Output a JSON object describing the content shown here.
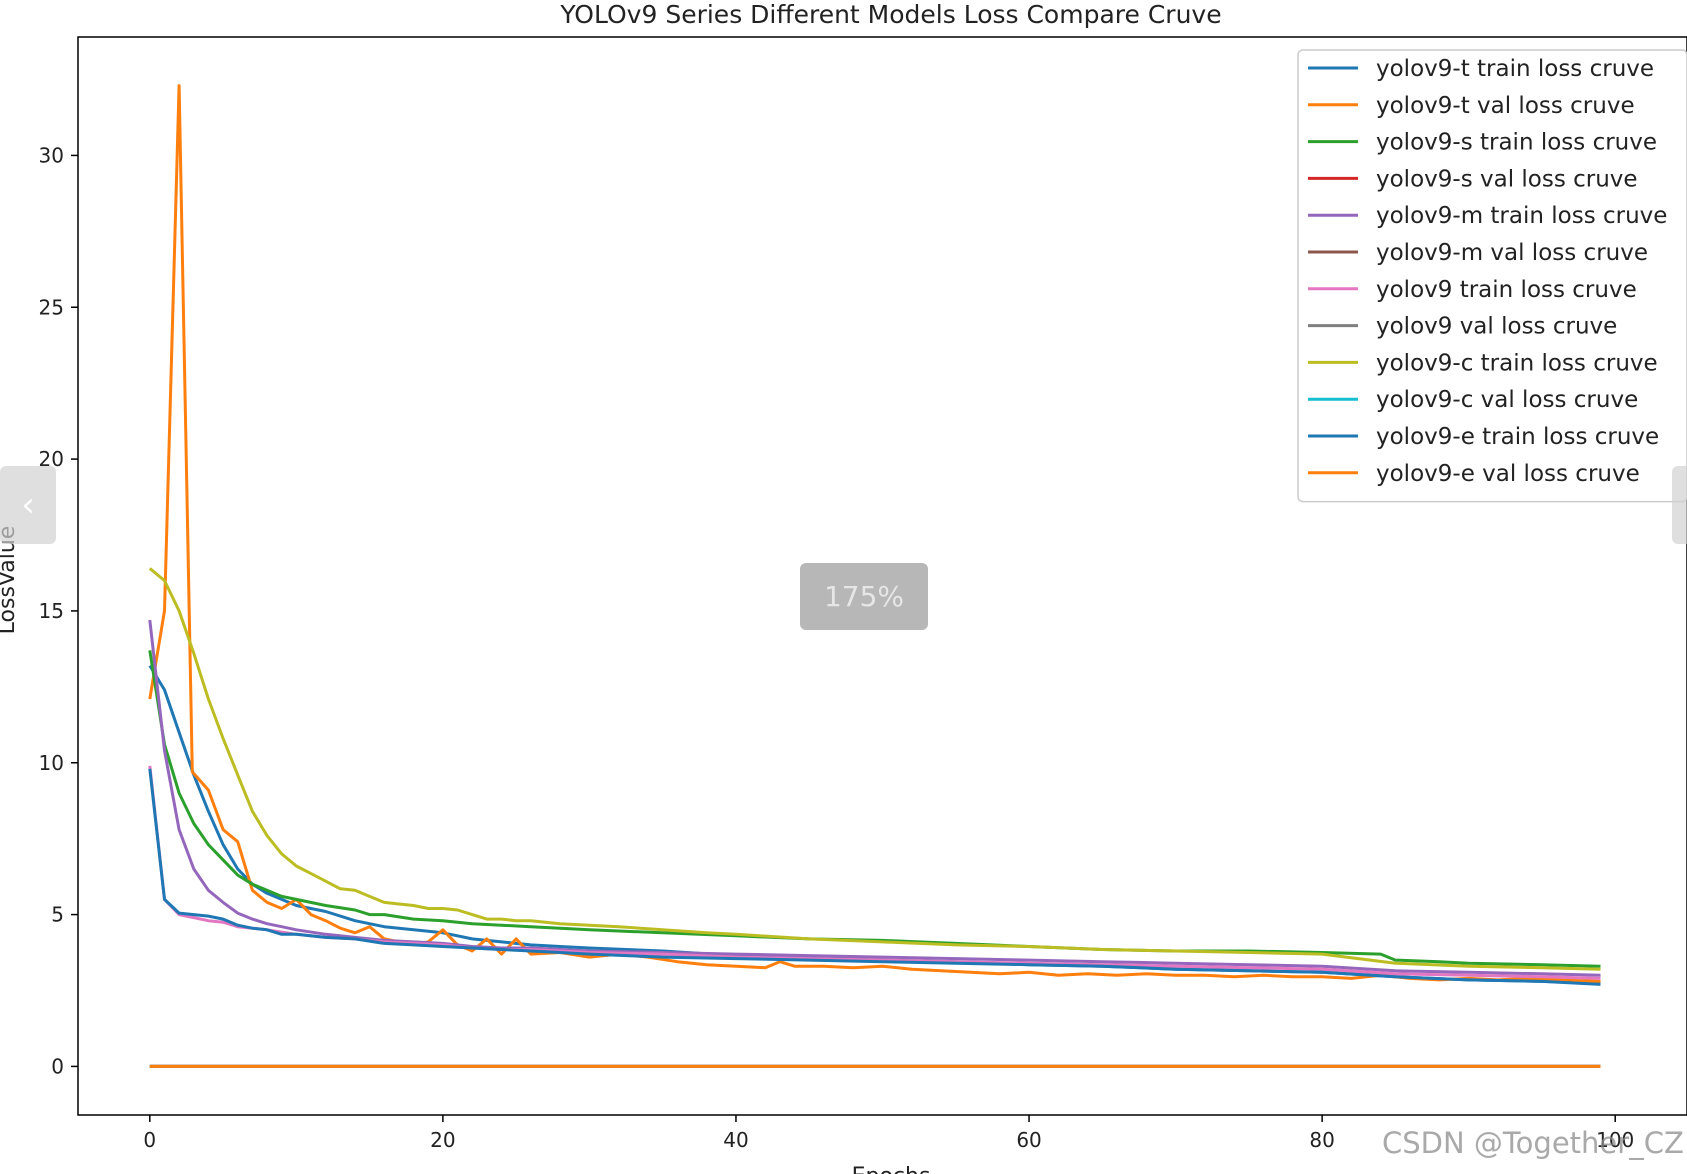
{
  "colors": {
    "c0": "#1f77b4",
    "c1": "#ff7f0e",
    "c2": "#2ca02c",
    "c3": "#d62728",
    "c4": "#9467bd",
    "c5": "#8c564b",
    "c6": "#e377c2",
    "c7": "#7f7f7f",
    "c8": "#bcbd22",
    "c9": "#17becf"
  },
  "ui": {
    "zoom_label": "175%",
    "watermark": "CSDN @Together_CZ",
    "prev_icon": "chevron-left-icon",
    "next_icon": "chevron-right-icon"
  },
  "chart_data": {
    "type": "line",
    "title": "YOLOv9 Series Different Models Loss Compare Cruve",
    "xlabel": "Epochs",
    "ylabel": "LossValue",
    "xlim": [
      -4.9,
      104.9
    ],
    "ylim": [
      -1.6,
      33.9
    ],
    "xticks": [
      0,
      20,
      40,
      60,
      80,
      100
    ],
    "yticks": [
      0,
      5,
      10,
      15,
      20,
      25,
      30
    ],
    "grid": false,
    "legend_position": "top-right",
    "x_range": [
      0,
      99
    ],
    "series": [
      {
        "name": "yolov9-t train loss cruve",
        "color": "#1f77b4",
        "points": [
          [
            0,
            13.2
          ],
          [
            1,
            12.4
          ],
          [
            2,
            11.0
          ],
          [
            3,
            9.6
          ],
          [
            4,
            8.4
          ],
          [
            5,
            7.3
          ],
          [
            6,
            6.5
          ],
          [
            7,
            6.0
          ],
          [
            8,
            5.7
          ],
          [
            9,
            5.5
          ],
          [
            10,
            5.3
          ],
          [
            12,
            5.1
          ],
          [
            14,
            4.8
          ],
          [
            16,
            4.6
          ],
          [
            18,
            4.5
          ],
          [
            20,
            4.4
          ],
          [
            22,
            4.2
          ],
          [
            24,
            4.1
          ],
          [
            26,
            4.0
          ],
          [
            28,
            3.95
          ],
          [
            30,
            3.9
          ],
          [
            35,
            3.8
          ],
          [
            40,
            3.65
          ],
          [
            45,
            3.6
          ],
          [
            50,
            3.5
          ],
          [
            55,
            3.45
          ],
          [
            60,
            3.35
          ],
          [
            65,
            3.3
          ],
          [
            70,
            3.2
          ],
          [
            75,
            3.15
          ],
          [
            80,
            3.1
          ],
          [
            85,
            2.95
          ],
          [
            90,
            2.85
          ],
          [
            95,
            2.8
          ],
          [
            99,
            2.75
          ]
        ]
      },
      {
        "name": "yolov9-t val loss cruve",
        "color": "#ff7f0e",
        "points": [
          [
            0,
            12.1
          ],
          [
            1,
            15.0
          ],
          [
            2,
            32.3
          ],
          [
            2.9,
            9.7
          ],
          [
            4,
            9.1
          ],
          [
            5,
            7.8
          ],
          [
            6,
            7.4
          ],
          [
            7,
            5.8
          ],
          [
            8,
            5.4
          ],
          [
            9,
            5.2
          ],
          [
            10,
            5.5
          ],
          [
            11,
            5.0
          ],
          [
            12,
            4.8
          ],
          [
            13,
            4.55
          ],
          [
            14,
            4.4
          ],
          [
            15,
            4.6
          ],
          [
            16,
            4.2
          ],
          [
            17,
            4.1
          ],
          [
            18,
            4.0
          ],
          [
            19,
            4.1
          ],
          [
            20,
            4.5
          ],
          [
            21,
            4.0
          ],
          [
            22,
            3.8
          ],
          [
            23,
            4.2
          ],
          [
            24,
            3.7
          ],
          [
            25,
            4.2
          ],
          [
            26,
            3.7
          ],
          [
            28,
            3.75
          ],
          [
            30,
            3.6
          ],
          [
            32,
            3.7
          ],
          [
            34,
            3.6
          ],
          [
            36,
            3.45
          ],
          [
            38,
            3.35
          ],
          [
            40,
            3.3
          ],
          [
            42,
            3.25
          ],
          [
            43,
            3.45
          ],
          [
            44,
            3.3
          ],
          [
            46,
            3.3
          ],
          [
            48,
            3.25
          ],
          [
            50,
            3.3
          ],
          [
            52,
            3.2
          ],
          [
            54,
            3.15
          ],
          [
            56,
            3.1
          ],
          [
            58,
            3.05
          ],
          [
            60,
            3.1
          ],
          [
            62,
            3.0
          ],
          [
            64,
            3.05
          ],
          [
            66,
            3.0
          ],
          [
            68,
            3.05
          ],
          [
            70,
            3.0
          ],
          [
            72,
            3.0
          ],
          [
            74,
            2.95
          ],
          [
            76,
            3.0
          ],
          [
            78,
            2.95
          ],
          [
            80,
            2.95
          ],
          [
            82,
            2.9
          ],
          [
            84,
            3.0
          ],
          [
            86,
            2.9
          ],
          [
            88,
            2.85
          ],
          [
            90,
            2.9
          ],
          [
            92,
            2.85
          ],
          [
            94,
            2.9
          ],
          [
            96,
            2.85
          ],
          [
            99,
            2.8
          ]
        ]
      },
      {
        "name": "yolov9-s train loss cruve",
        "color": "#2ca02c",
        "points": [
          [
            0,
            13.7
          ],
          [
            1,
            10.6
          ],
          [
            2,
            9.0
          ],
          [
            3,
            8.0
          ],
          [
            4,
            7.3
          ],
          [
            5,
            6.8
          ],
          [
            6,
            6.3
          ],
          [
            7,
            6.0
          ],
          [
            8,
            5.8
          ],
          [
            9,
            5.6
          ],
          [
            10,
            5.5
          ],
          [
            12,
            5.3
          ],
          [
            14,
            5.15
          ],
          [
            15,
            5.0
          ],
          [
            16,
            5.0
          ],
          [
            18,
            4.85
          ],
          [
            20,
            4.8
          ],
          [
            22,
            4.7
          ],
          [
            24,
            4.65
          ],
          [
            26,
            4.6
          ],
          [
            28,
            4.55
          ],
          [
            30,
            4.5
          ],
          [
            35,
            4.4
          ],
          [
            40,
            4.3
          ],
          [
            45,
            4.2
          ],
          [
            50,
            4.15
          ],
          [
            55,
            4.05
          ],
          [
            60,
            3.95
          ],
          [
            65,
            3.85
          ],
          [
            70,
            3.8
          ],
          [
            75,
            3.8
          ],
          [
            80,
            3.75
          ],
          [
            84,
            3.7
          ],
          [
            85,
            3.5
          ],
          [
            88,
            3.45
          ],
          [
            90,
            3.4
          ],
          [
            95,
            3.35
          ],
          [
            99,
            3.3
          ]
        ]
      },
      {
        "name": "yolov9-s val loss cruve",
        "color": "#d62728",
        "points": [
          [
            0,
            0
          ],
          [
            99,
            0
          ]
        ]
      },
      {
        "name": "yolov9-m train loss cruve",
        "color": "#9467bd",
        "points": [
          [
            0,
            14.7
          ],
          [
            1,
            10.4
          ],
          [
            2,
            7.8
          ],
          [
            3,
            6.5
          ],
          [
            4,
            5.8
          ],
          [
            5,
            5.4
          ],
          [
            6,
            5.05
          ],
          [
            7,
            4.85
          ],
          [
            8,
            4.7
          ],
          [
            9,
            4.6
          ],
          [
            10,
            4.5
          ],
          [
            12,
            4.35
          ],
          [
            14,
            4.25
          ],
          [
            16,
            4.15
          ],
          [
            18,
            4.1
          ],
          [
            20,
            4.05
          ],
          [
            22,
            3.95
          ],
          [
            24,
            3.9
          ],
          [
            26,
            3.9
          ],
          [
            28,
            3.85
          ],
          [
            30,
            3.8
          ],
          [
            35,
            3.75
          ],
          [
            40,
            3.7
          ],
          [
            45,
            3.65
          ],
          [
            50,
            3.6
          ],
          [
            55,
            3.55
          ],
          [
            60,
            3.5
          ],
          [
            65,
            3.45
          ],
          [
            70,
            3.4
          ],
          [
            75,
            3.35
          ],
          [
            80,
            3.3
          ],
          [
            85,
            3.15
          ],
          [
            90,
            3.1
          ],
          [
            95,
            3.05
          ],
          [
            99,
            3.0
          ]
        ]
      },
      {
        "name": "yolov9-m val loss cruve",
        "color": "#8c564b",
        "points": [
          [
            0,
            0
          ],
          [
            99,
            0
          ]
        ]
      },
      {
        "name": "yolov9 train loss cruve",
        "color": "#e377c2",
        "points": [
          [
            0,
            9.9
          ],
          [
            1,
            5.5
          ],
          [
            2,
            5.0
          ],
          [
            3,
            4.9
          ],
          [
            4,
            4.8
          ],
          [
            5,
            4.75
          ],
          [
            6,
            4.6
          ],
          [
            7,
            4.55
          ],
          [
            8,
            4.5
          ],
          [
            10,
            4.35
          ],
          [
            12,
            4.25
          ],
          [
            14,
            4.2
          ],
          [
            16,
            4.1
          ],
          [
            18,
            4.05
          ],
          [
            20,
            4.0
          ],
          [
            22,
            3.9
          ],
          [
            24,
            3.85
          ],
          [
            26,
            3.85
          ],
          [
            28,
            3.8
          ],
          [
            30,
            3.75
          ],
          [
            35,
            3.7
          ],
          [
            40,
            3.6
          ],
          [
            45,
            3.55
          ],
          [
            50,
            3.5
          ],
          [
            55,
            3.45
          ],
          [
            60,
            3.4
          ],
          [
            65,
            3.35
          ],
          [
            70,
            3.3
          ],
          [
            75,
            3.25
          ],
          [
            80,
            3.2
          ],
          [
            85,
            3.05
          ],
          [
            90,
            3.0
          ],
          [
            95,
            2.95
          ],
          [
            99,
            2.9
          ]
        ]
      },
      {
        "name": "yolov9 val loss cruve",
        "color": "#7f7f7f",
        "points": [
          [
            0,
            0
          ],
          [
            99,
            0
          ]
        ]
      },
      {
        "name": "yolov9-c train loss cruve",
        "color": "#bcbd22",
        "points": [
          [
            0,
            16.4
          ],
          [
            1,
            16.0
          ],
          [
            2,
            15.0
          ],
          [
            3,
            13.6
          ],
          [
            4,
            12.1
          ],
          [
            5,
            10.8
          ],
          [
            6,
            9.6
          ],
          [
            7,
            8.4
          ],
          [
            8,
            7.6
          ],
          [
            9,
            7.0
          ],
          [
            10,
            6.6
          ],
          [
            11,
            6.35
          ],
          [
            12,
            6.1
          ],
          [
            13,
            5.85
          ],
          [
            14,
            5.8
          ],
          [
            15,
            5.6
          ],
          [
            16,
            5.4
          ],
          [
            17,
            5.35
          ],
          [
            18,
            5.3
          ],
          [
            19,
            5.2
          ],
          [
            20,
            5.2
          ],
          [
            21,
            5.15
          ],
          [
            22,
            5.0
          ],
          [
            23,
            4.85
          ],
          [
            24,
            4.85
          ],
          [
            25,
            4.8
          ],
          [
            26,
            4.8
          ],
          [
            28,
            4.7
          ],
          [
            30,
            4.65
          ],
          [
            32,
            4.6
          ],
          [
            35,
            4.5
          ],
          [
            38,
            4.4
          ],
          [
            40,
            4.35
          ],
          [
            45,
            4.2
          ],
          [
            50,
            4.1
          ],
          [
            55,
            4.0
          ],
          [
            60,
            3.95
          ],
          [
            65,
            3.85
          ],
          [
            70,
            3.8
          ],
          [
            75,
            3.75
          ],
          [
            80,
            3.7
          ],
          [
            85,
            3.4
          ],
          [
            90,
            3.3
          ],
          [
            95,
            3.25
          ],
          [
            99,
            3.2
          ]
        ]
      },
      {
        "name": "yolov9-c val loss cruve",
        "color": "#17becf",
        "points": [
          [
            0,
            0
          ],
          [
            99,
            0
          ]
        ]
      },
      {
        "name": "yolov9-e train loss cruve",
        "color": "#1f77b4",
        "points": [
          [
            0,
            9.8
          ],
          [
            1,
            5.5
          ],
          [
            2,
            5.05
          ],
          [
            3,
            5.0
          ],
          [
            4,
            4.95
          ],
          [
            5,
            4.85
          ],
          [
            6,
            4.65
          ],
          [
            7,
            4.55
          ],
          [
            8,
            4.5
          ],
          [
            9,
            4.35
          ],
          [
            10,
            4.35
          ],
          [
            12,
            4.25
          ],
          [
            14,
            4.2
          ],
          [
            16,
            4.05
          ],
          [
            18,
            4.0
          ],
          [
            20,
            3.95
          ],
          [
            22,
            3.9
          ],
          [
            24,
            3.85
          ],
          [
            26,
            3.8
          ],
          [
            28,
            3.75
          ],
          [
            30,
            3.7
          ],
          [
            35,
            3.6
          ],
          [
            40,
            3.55
          ],
          [
            45,
            3.5
          ],
          [
            50,
            3.45
          ],
          [
            55,
            3.4
          ],
          [
            60,
            3.35
          ],
          [
            65,
            3.3
          ],
          [
            70,
            3.2
          ],
          [
            75,
            3.15
          ],
          [
            80,
            3.1
          ],
          [
            85,
            2.95
          ],
          [
            90,
            2.85
          ],
          [
            95,
            2.8
          ],
          [
            99,
            2.7
          ]
        ]
      },
      {
        "name": "yolov9-e val loss cruve",
        "color": "#ff7f0e",
        "points": [
          [
            0,
            0
          ],
          [
            99,
            0
          ]
        ]
      }
    ]
  }
}
